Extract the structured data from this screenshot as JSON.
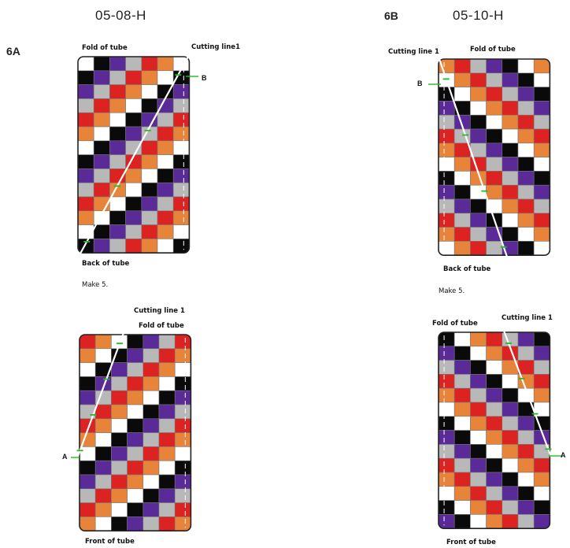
{
  "sections": [
    {
      "id": "6A",
      "label": "6A",
      "code": "05-08-H",
      "top_block": {
        "fold_label": "Fold of tube",
        "cut_label": "Cutting line1",
        "point_label": "B",
        "bottom_label": "Back of tube"
      },
      "note": "Make 5.",
      "bottom_block": {
        "cut_label": "Cutting line 1",
        "fold_label": "Fold of tube",
        "point_label": "A",
        "bottom_label": "Front of tube"
      }
    },
    {
      "id": "6B",
      "label": "6B",
      "code": "05-10-H",
      "top_block": {
        "cut_label": "Cutting line 1",
        "fold_label": "Fold of tube",
        "point_label": "B",
        "bottom_label": "Back of tube"
      },
      "note": "Make 5.",
      "bottom_block": {
        "fold_label": "Fold of tube",
        "cut_label": "Cutting line 1",
        "point_label": "A",
        "bottom_label": "Front of tube"
      }
    }
  ],
  "palette": {
    "red": "#dd2222",
    "orange": "#e8833a",
    "purple": "#5b2a99",
    "black": "#0a0a0a",
    "gray": "#b8b8b8",
    "white": "#ffffff",
    "cut_line": "#ffffff",
    "marker": "#22bb22"
  },
  "quilt_sequence": [
    "red",
    "orange",
    "white",
    "black",
    "purple",
    "gray"
  ]
}
